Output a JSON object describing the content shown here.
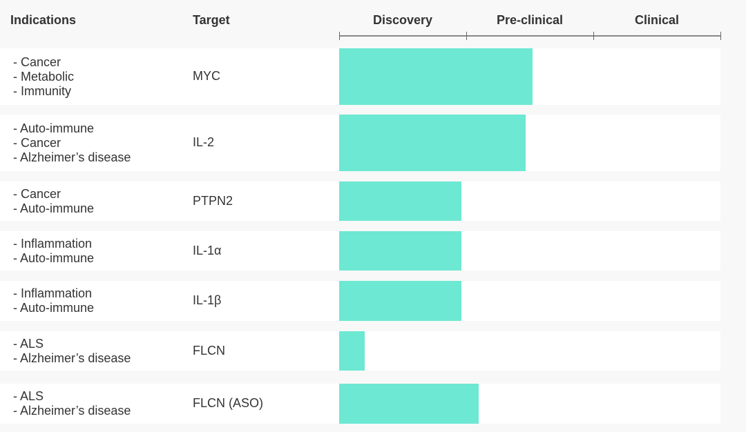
{
  "headers": {
    "indications": "Indications",
    "target": "Target"
  },
  "chart_data": {
    "type": "bar",
    "orientation": "horizontal",
    "stages": [
      "Discovery",
      "Pre-clinical",
      "Clinical"
    ],
    "xlim": [
      0,
      3
    ],
    "bar_color": "#6de8d2",
    "rows": [
      {
        "indications": [
          "- Cancer",
          "- Metabolic",
          "- Immunity"
        ],
        "target": "MYC",
        "progress": 1.52
      },
      {
        "indications": [
          "- Auto-immune",
          "- Cancer",
          "- Alzheimer’s disease"
        ],
        "target": "IL-2",
        "progress": 1.47
      },
      {
        "indications": [
          "- Cancer",
          "- Auto-immune"
        ],
        "target": "PTPN2",
        "progress": 0.96
      },
      {
        "indications": [
          "- Inflammation",
          "- Auto-immune"
        ],
        "target": "IL-1α",
        "progress": 0.96
      },
      {
        "indications": [
          "- Inflammation",
          "- Auto-immune"
        ],
        "target": "IL-1β",
        "progress": 0.96
      },
      {
        "indications": [
          "- ALS",
          "- Alzheimer’s disease"
        ],
        "target": "FLCN",
        "progress": 0.2
      },
      {
        "indications": [
          "- ALS",
          "- Alzheimer’s disease"
        ],
        "target": "FLCN (ASO)",
        "progress": 1.1
      }
    ]
  }
}
